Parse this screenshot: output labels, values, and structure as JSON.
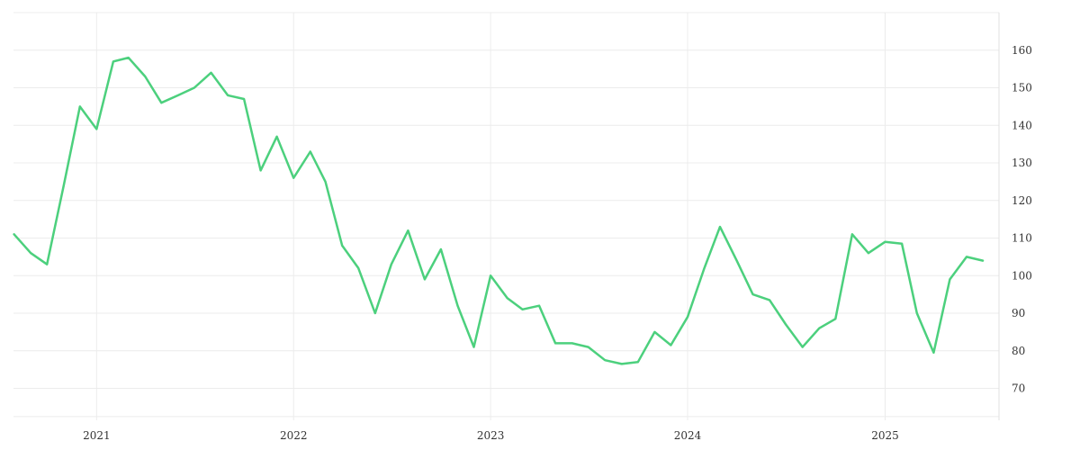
{
  "chart_data": {
    "type": "line",
    "title": "",
    "xlabel": "",
    "ylabel": "",
    "ylim": [
      61.5,
      170
    ],
    "xlim": [
      "2020-07-31",
      "2025-07-31"
    ],
    "x_ticks": [
      "2021",
      "2022",
      "2023",
      "2024",
      "2025"
    ],
    "y_ticks": [
      70,
      80,
      90,
      100,
      110,
      120,
      130,
      140,
      150,
      160
    ],
    "y_axis_side": "right",
    "grid": true,
    "legend": "none",
    "colors": {
      "line": "#4cd07d"
    },
    "series": [
      {
        "x": [
          "2020-08-01",
          "2020-09-01",
          "2020-10-01",
          "2020-11-01",
          "2020-12-01",
          "2021-01-01",
          "2021-02-01",
          "2021-03-01",
          "2021-04-01",
          "2021-05-01",
          "2021-06-01",
          "2021-07-01",
          "2021-08-01",
          "2021-09-01",
          "2021-10-01",
          "2021-11-01",
          "2021-12-01",
          "2022-01-01",
          "2022-02-01",
          "2022-03-01",
          "2022-04-01",
          "2022-05-01",
          "2022-06-01",
          "2022-07-01",
          "2022-08-01",
          "2022-09-01",
          "2022-10-01",
          "2022-11-01",
          "2022-12-01",
          "2023-01-01",
          "2023-02-01",
          "2023-03-01",
          "2023-04-01",
          "2023-05-01",
          "2023-06-01",
          "2023-07-01",
          "2023-08-01",
          "2023-09-01",
          "2023-10-01",
          "2023-11-01",
          "2023-12-01",
          "2024-01-01",
          "2024-02-01",
          "2024-03-01",
          "2024-04-01",
          "2024-05-01",
          "2024-06-01",
          "2024-07-01",
          "2024-08-01",
          "2024-09-01",
          "2024-10-01",
          "2024-11-01",
          "2024-12-01",
          "2025-01-01",
          "2025-02-01",
          "2025-03-01",
          "2025-04-01",
          "2025-05-01",
          "2025-06-01",
          "2025-07-01"
        ],
        "values": [
          111,
          106,
          103,
          124,
          145,
          139,
          157,
          158,
          153,
          146,
          148,
          150,
          154,
          148,
          147,
          128,
          137,
          126,
          133,
          125,
          108,
          102,
          90,
          103,
          112,
          99,
          107,
          92,
          81,
          100,
          94,
          91,
          92,
          82,
          82,
          81,
          77.5,
          76.5,
          77,
          85,
          81.5,
          89,
          102,
          113,
          104,
          95,
          93.5,
          87,
          81,
          86,
          88.5,
          111,
          106,
          109,
          108.5,
          90,
          79.5,
          99,
          105,
          104
        ]
      }
    ]
  }
}
